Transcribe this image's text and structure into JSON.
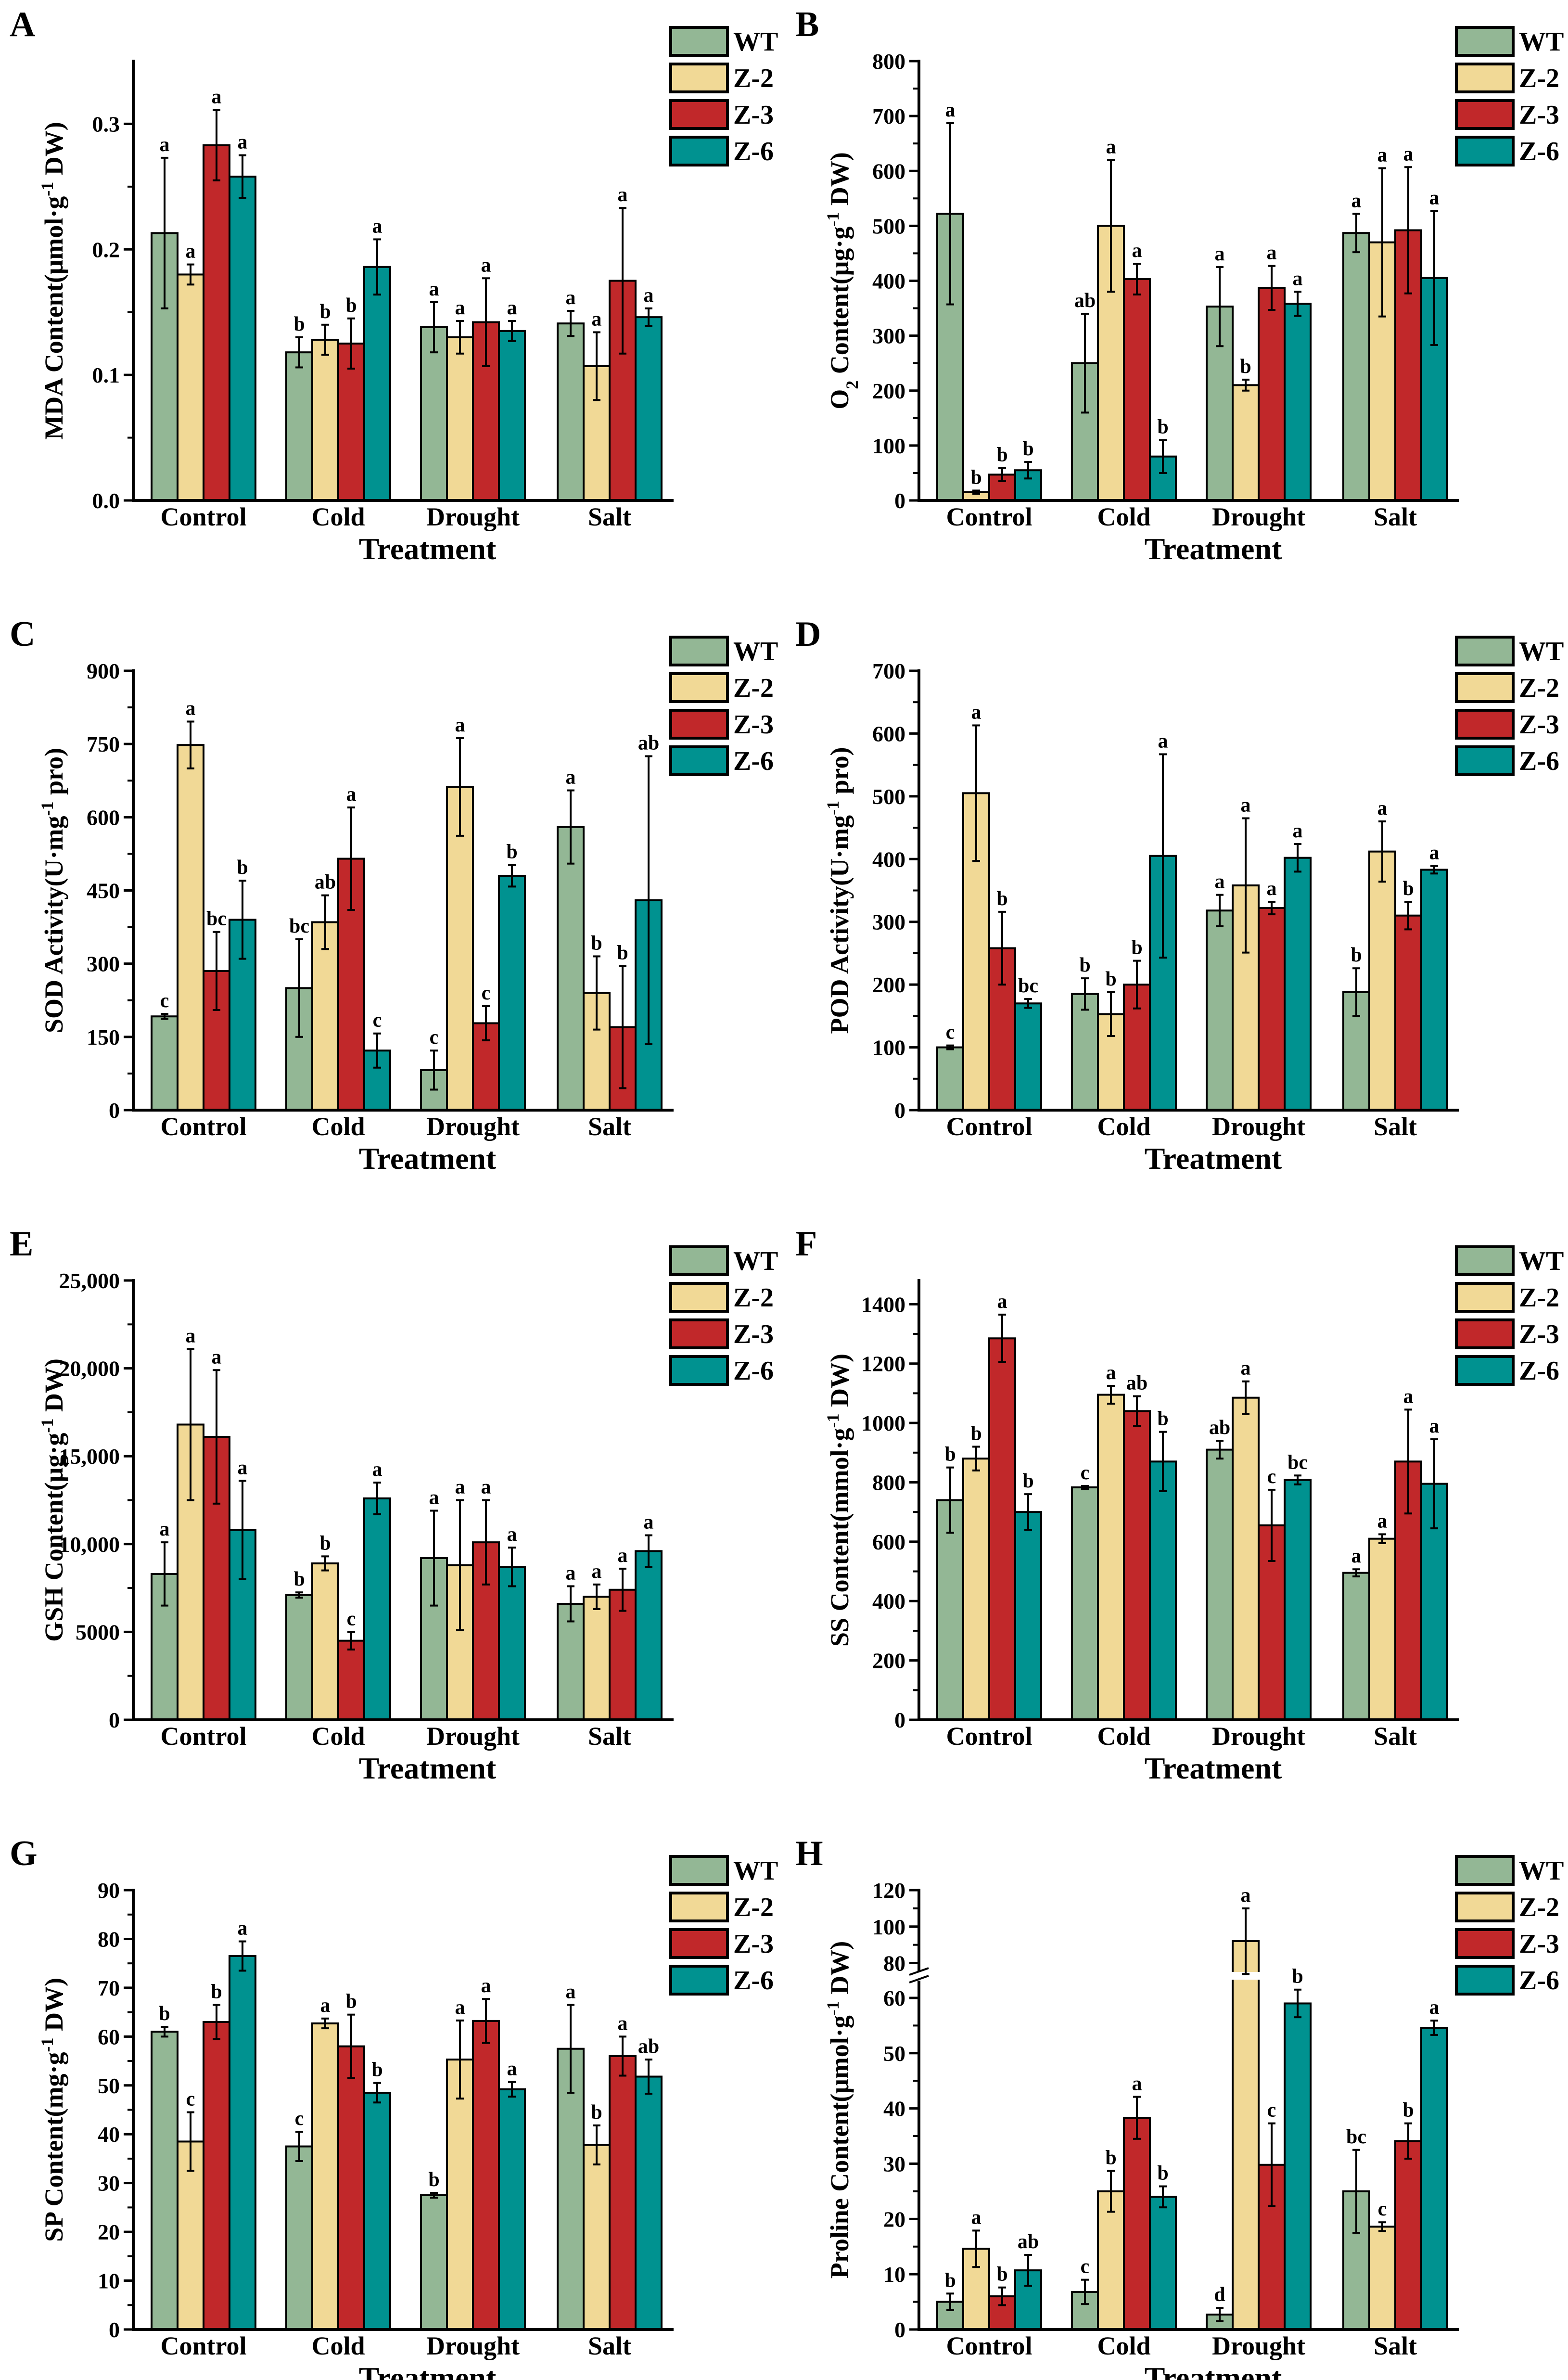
{
  "colors": {
    "WT": "#93b795",
    "Z-2": "#f1d996",
    "Z-3": "#c1282a",
    "Z-6": "#009290"
  },
  "legend": [
    "WT",
    "Z-2",
    "Z-3",
    "Z-6"
  ],
  "chart_data": [
    {
      "panel": "A",
      "type": "bar",
      "xlabel": "Treatment",
      "ylabel": [
        {
          "t": "MDA Content(μmol·g"
        },
        {
          "t": "-1",
          "sup": true
        },
        {
          "t": "  DW)"
        }
      ],
      "categories": [
        "Control",
        "Cold",
        "Drought",
        "Salt"
      ],
      "ylim": [
        0,
        0.35
      ],
      "yticks": [
        0,
        0.1,
        0.2,
        0.3
      ],
      "ytick_labels": [
        "0.0",
        "0.1",
        "0.2",
        "0.3"
      ],
      "series": [
        {
          "name": "WT",
          "values": [
            0.213,
            0.118,
            0.138,
            0.141
          ],
          "errors": [
            0.06,
            0.012,
            0.02,
            0.01
          ],
          "letters": [
            "a",
            "b",
            "a",
            "a"
          ]
        },
        {
          "name": "Z-2",
          "values": [
            0.18,
            0.128,
            0.13,
            0.107
          ],
          "errors": [
            0.008,
            0.012,
            0.013,
            0.027
          ],
          "letters": [
            "a",
            "b",
            "a",
            "a"
          ]
        },
        {
          "name": "Z-3",
          "values": [
            0.283,
            0.125,
            0.142,
            0.175
          ],
          "errors": [
            0.028,
            0.02,
            0.035,
            0.058
          ],
          "letters": [
            "a",
            "b",
            "a",
            "a"
          ]
        },
        {
          "name": "Z-6",
          "values": [
            0.258,
            0.186,
            0.135,
            0.146
          ],
          "errors": [
            0.017,
            0.022,
            0.008,
            0.007
          ],
          "letters": [
            "a",
            "a",
            "a",
            "a"
          ]
        }
      ]
    },
    {
      "panel": "B",
      "type": "bar",
      "xlabel": "Treatment",
      "ylabel": [
        {
          "t": "O"
        },
        {
          "t": "2",
          "sub": true
        },
        {
          "t": " Content(μg·g"
        },
        {
          "t": "-1",
          "sup": true
        },
        {
          "t": "  DW)"
        }
      ],
      "categories": [
        "Control",
        "Cold",
        "Drought",
        "Salt"
      ],
      "ylim": [
        0,
        800
      ],
      "yticks": [
        0,
        100,
        200,
        300,
        400,
        500,
        600,
        700,
        800
      ],
      "ytick_labels": [
        "0",
        "100",
        "200",
        "300",
        "400",
        "500",
        "600",
        "700",
        "800"
      ],
      "series": [
        {
          "name": "WT",
          "values": [
            522,
            250,
            353,
            487
          ],
          "errors": [
            165,
            90,
            72,
            35
          ],
          "letters": [
            "a",
            "ab",
            "a",
            "a"
          ]
        },
        {
          "name": "Z-2",
          "values": [
            15,
            500,
            210,
            470
          ],
          "errors": [
            3,
            120,
            10,
            135
          ],
          "letters": [
            "b",
            "a",
            "b",
            "a"
          ]
        },
        {
          "name": "Z-3",
          "values": [
            47,
            403,
            387,
            492
          ],
          "errors": [
            12,
            28,
            40,
            115
          ],
          "letters": [
            "b",
            "a",
            "a",
            "a"
          ]
        },
        {
          "name": "Z-6",
          "values": [
            55,
            80,
            358,
            405
          ],
          "errors": [
            15,
            30,
            22,
            122
          ],
          "letters": [
            "b",
            "b",
            "a",
            "a"
          ]
        }
      ]
    },
    {
      "panel": "C",
      "type": "bar",
      "xlabel": "Treatment",
      "ylabel": [
        {
          "t": "SOD Activity(U·mg"
        },
        {
          "t": "-1",
          "sup": true
        },
        {
          "t": "  pro)"
        }
      ],
      "categories": [
        "Control",
        "Cold",
        "Drought",
        "Salt"
      ],
      "ylim": [
        0,
        900
      ],
      "yticks": [
        0,
        150,
        300,
        450,
        600,
        750,
        900
      ],
      "ytick_labels": [
        "0",
        "150",
        "300",
        "450",
        "600",
        "750",
        "900"
      ],
      "series": [
        {
          "name": "WT",
          "values": [
            192,
            250,
            82,
            580
          ],
          "errors": [
            5,
            100,
            40,
            75
          ],
          "letters": [
            "c",
            "bc",
            "c",
            "a"
          ]
        },
        {
          "name": "Z-2",
          "values": [
            748,
            385,
            662,
            240
          ],
          "errors": [
            48,
            55,
            100,
            75
          ],
          "letters": [
            "a",
            "ab",
            "a",
            "b"
          ]
        },
        {
          "name": "Z-3",
          "values": [
            285,
            515,
            178,
            170
          ],
          "errors": [
            80,
            105,
            35,
            125
          ],
          "letters": [
            "bc",
            "a",
            "c",
            "b"
          ]
        },
        {
          "name": "Z-6",
          "values": [
            390,
            122,
            480,
            430
          ],
          "errors": [
            80,
            35,
            22,
            295
          ],
          "letters": [
            "b",
            "c",
            "b",
            "ab"
          ]
        }
      ]
    },
    {
      "panel": "D",
      "type": "bar",
      "xlabel": "Treatment",
      "ylabel": [
        {
          "t": "POD Activity(U·mg"
        },
        {
          "t": "-1",
          "sup": true
        },
        {
          "t": "  pro)"
        }
      ],
      "categories": [
        "Control",
        "Cold",
        "Drought",
        "Salt"
      ],
      "ylim": [
        0,
        700
      ],
      "yticks": [
        0,
        100,
        200,
        300,
        400,
        500,
        600,
        700
      ],
      "ytick_labels": [
        "0",
        "100",
        "200",
        "300",
        "400",
        "500",
        "600",
        "700"
      ],
      "series": [
        {
          "name": "WT",
          "values": [
            100,
            185,
            318,
            188
          ],
          "errors": [
            3,
            25,
            25,
            38
          ],
          "letters": [
            "c",
            "b",
            "a",
            "b"
          ]
        },
        {
          "name": "Z-2",
          "values": [
            505,
            153,
            358,
            412
          ],
          "errors": [
            108,
            35,
            107,
            48
          ],
          "letters": [
            "a",
            "b",
            "a",
            "a"
          ]
        },
        {
          "name": "Z-3",
          "values": [
            258,
            200,
            322,
            310
          ],
          "errors": [
            58,
            38,
            10,
            22
          ],
          "letters": [
            "b",
            "b",
            "a",
            "b"
          ]
        },
        {
          "name": "Z-6",
          "values": [
            170,
            405,
            402,
            383
          ],
          "errors": [
            7,
            162,
            22,
            6
          ],
          "letters": [
            "bc",
            "a",
            "a",
            "a"
          ]
        }
      ]
    },
    {
      "panel": "E",
      "type": "bar",
      "xlabel": "Treatment",
      "ylabel": [
        {
          "t": "GSH Content(μg·g"
        },
        {
          "t": "-1",
          "sup": true
        },
        {
          "t": "  DW)"
        }
      ],
      "categories": [
        "Control",
        "Cold",
        "Drought",
        "Salt"
      ],
      "ylim": [
        0,
        25000
      ],
      "yticks": [
        0,
        5000,
        10000,
        15000,
        20000,
        25000
      ],
      "ytick_labels": [
        "0",
        "5000",
        "10,000",
        "15,000",
        "20,000",
        "25,000"
      ],
      "series": [
        {
          "name": "WT",
          "values": [
            8300,
            7100,
            9200,
            6600
          ],
          "errors": [
            1800,
            150,
            2700,
            1000
          ],
          "letters": [
            "a",
            "b",
            "a",
            "a"
          ]
        },
        {
          "name": "Z-2",
          "values": [
            16800,
            8900,
            8800,
            7000
          ],
          "errors": [
            4300,
            400,
            3700,
            700
          ],
          "letters": [
            "a",
            "b",
            "a",
            "a"
          ]
        },
        {
          "name": "Z-3",
          "values": [
            16100,
            4500,
            10100,
            7400
          ],
          "errors": [
            3800,
            500,
            2400,
            1200
          ],
          "letters": [
            "a",
            "c",
            "a",
            "a"
          ]
        },
        {
          "name": "Z-6",
          "values": [
            10800,
            12600,
            8700,
            9600
          ],
          "errors": [
            2800,
            900,
            1100,
            900
          ],
          "letters": [
            "a",
            "a",
            "a",
            "a"
          ]
        }
      ]
    },
    {
      "panel": "F",
      "type": "bar",
      "xlabel": "Treatment",
      "ylabel": [
        {
          "t": "SS Content(mmol·g"
        },
        {
          "t": "-1",
          "sup": true
        },
        {
          "t": "  DW)"
        }
      ],
      "categories": [
        "Control",
        "Cold",
        "Drought",
        "Salt"
      ],
      "ylim": [
        0,
        1480
      ],
      "yticks": [
        0,
        200,
        400,
        600,
        800,
        1000,
        1200,
        1400
      ],
      "ytick_labels": [
        "0",
        "200",
        "400",
        "600",
        "800",
        "1000",
        "1200",
        "1400"
      ],
      "series": [
        {
          "name": "WT",
          "values": [
            740,
            783,
            910,
            495
          ],
          "errors": [
            110,
            5,
            30,
            12
          ],
          "letters": [
            "b",
            "c",
            "ab",
            "a"
          ]
        },
        {
          "name": "Z-2",
          "values": [
            880,
            1095,
            1085,
            610
          ],
          "errors": [
            40,
            30,
            55,
            15
          ],
          "letters": [
            "b",
            "a",
            "a",
            "a"
          ]
        },
        {
          "name": "Z-3",
          "values": [
            1285,
            1040,
            655,
            870
          ],
          "errors": [
            80,
            50,
            120,
            175
          ],
          "letters": [
            "a",
            "ab",
            "c",
            "a"
          ]
        },
        {
          "name": "Z-6",
          "values": [
            700,
            870,
            808,
            795
          ],
          "errors": [
            60,
            100,
            15,
            150
          ],
          "letters": [
            "b",
            "b",
            "bc",
            "a"
          ]
        }
      ]
    },
    {
      "panel": "G",
      "type": "bar",
      "xlabel": "Treatment",
      "ylabel": [
        {
          "t": "SP Content(mg·g"
        },
        {
          "t": "-1",
          "sup": true
        },
        {
          "t": "  DW)"
        }
      ],
      "categories": [
        "Control",
        "Cold",
        "Drought",
        "Salt"
      ],
      "ylim": [
        0,
        90
      ],
      "yticks": [
        0,
        10,
        20,
        30,
        40,
        50,
        60,
        70,
        80,
        90
      ],
      "ytick_labels": [
        "0",
        "10",
        "20",
        "30",
        "40",
        "50",
        "60",
        "70",
        "80",
        "90"
      ],
      "series": [
        {
          "name": "WT",
          "values": [
            61,
            37.5,
            27.5,
            57.5
          ],
          "errors": [
            1,
            3,
            0.5,
            9
          ],
          "letters": [
            "b",
            "c",
            "b",
            "a"
          ]
        },
        {
          "name": "Z-2",
          "values": [
            38.5,
            62.7,
            55.3,
            37.8
          ],
          "errors": [
            6,
            1,
            8,
            4
          ],
          "letters": [
            "c",
            "a",
            "a",
            "b"
          ]
        },
        {
          "name": "Z-3",
          "values": [
            63,
            58,
            63.2,
            56
          ],
          "errors": [
            3.5,
            6.5,
            4.5,
            4
          ],
          "letters": [
            "b",
            "b",
            "a",
            "a"
          ]
        },
        {
          "name": "Z-6",
          "values": [
            76.5,
            48.5,
            49.2,
            51.8
          ],
          "errors": [
            3,
            2,
            1.5,
            3.5
          ],
          "letters": [
            "a",
            "b",
            "a",
            "ab"
          ]
        }
      ]
    },
    {
      "panel": "H",
      "type": "bar",
      "xlabel": "Treatment",
      "ylabel": [
        {
          "t": "Proline Content(μmol·g"
        },
        {
          "t": "-1",
          "sup": true
        },
        {
          "t": "  DW)"
        }
      ],
      "categories": [
        "Control",
        "Cold",
        "Drought",
        "Salt"
      ],
      "ylim": [
        0,
        120
      ],
      "axis_break": [
        64,
        73
      ],
      "yticks": [
        0,
        10,
        20,
        30,
        40,
        50,
        60,
        80,
        100,
        120
      ],
      "ytick_labels": [
        "0",
        "10",
        "20",
        "30",
        "40",
        "50",
        "60",
        "80",
        "100",
        "120"
      ],
      "series": [
        {
          "name": "WT",
          "values": [
            5,
            6.8,
            2.7,
            25
          ],
          "errors": [
            1.5,
            2.2,
            1.2,
            7.5
          ],
          "letters": [
            "b",
            "c",
            "d",
            "bc"
          ]
        },
        {
          "name": "Z-2",
          "values": [
            14.6,
            25,
            92,
            18.6
          ],
          "errors": [
            3.3,
            3.7,
            18,
            0.8
          ],
          "letters": [
            "a",
            "b",
            "a",
            "c"
          ]
        },
        {
          "name": "Z-3",
          "values": [
            6,
            38.3,
            29.8,
            34.1
          ],
          "errors": [
            1.6,
            3.8,
            7.5,
            3.2
          ],
          "letters": [
            "b",
            "a",
            "c",
            "b"
          ]
        },
        {
          "name": "Z-6",
          "values": [
            10.7,
            24,
            59,
            54.6
          ],
          "errors": [
            2.8,
            1.9,
            2.5,
            1.3
          ],
          "letters": [
            "ab",
            "b",
            "b",
            "a"
          ]
        }
      ]
    }
  ]
}
